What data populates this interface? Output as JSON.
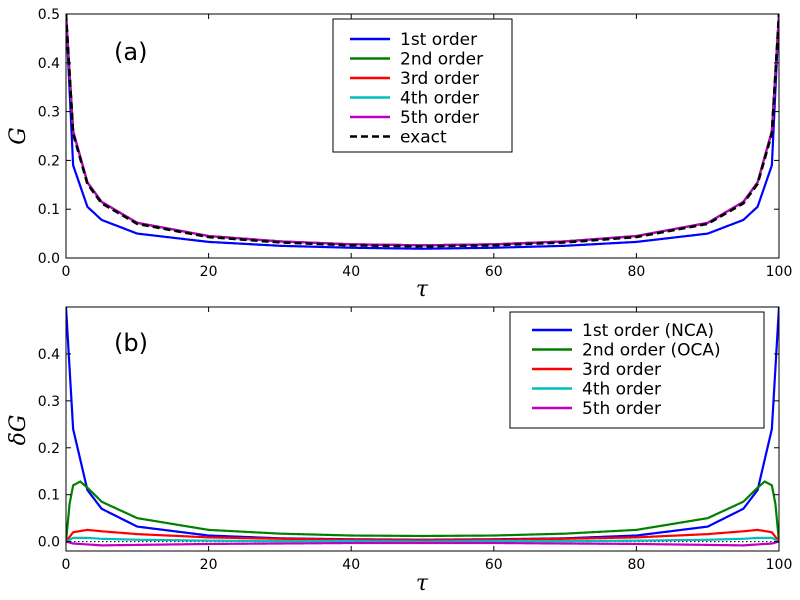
{
  "chart_data": [
    {
      "type": "line",
      "panel_label": "(a)",
      "xlabel": "τ",
      "ylabel": "G",
      "xlim": [
        0,
        100
      ],
      "ylim": [
        0,
        0.5
      ],
      "xticks": [
        "0",
        "20",
        "40",
        "60",
        "80",
        "100"
      ],
      "yticks": [
        "0.0",
        "0.1",
        "0.2",
        "0.3",
        "0.4",
        "0.5"
      ],
      "grid": false,
      "legend_position": "upper-center",
      "series": [
        {
          "name": "1st order",
          "color": "#0000ff",
          "dash": "solid",
          "y_at": {
            "0": 0.5,
            "1": 0.19,
            "3": 0.105,
            "5": 0.078,
            "10": 0.05,
            "20": 0.033,
            "30": 0.025,
            "40": 0.021,
            "50": 0.019
          }
        },
        {
          "name": "2nd order",
          "color": "#008000",
          "dash": "solid",
          "y_at": {
            "0": 0.5,
            "1": 0.26,
            "3": 0.155,
            "5": 0.115,
            "10": 0.072,
            "20": 0.045,
            "30": 0.034,
            "40": 0.028,
            "50": 0.026
          }
        },
        {
          "name": "3rd order",
          "color": "#ff0000",
          "dash": "solid",
          "y_at": {
            "0": 0.5,
            "1": 0.26,
            "3": 0.155,
            "5": 0.115,
            "10": 0.072,
            "20": 0.045,
            "30": 0.034,
            "40": 0.028,
            "50": 0.026
          }
        },
        {
          "name": "4th order",
          "color": "#00bfbf",
          "dash": "solid",
          "y_at": {
            "0": 0.5,
            "1": 0.26,
            "3": 0.155,
            "5": 0.115,
            "10": 0.072,
            "20": 0.045,
            "30": 0.034,
            "40": 0.028,
            "50": 0.026
          }
        },
        {
          "name": "5th order",
          "color": "#bf00bf",
          "dash": "solid",
          "y_at": {
            "0": 0.5,
            "1": 0.26,
            "3": 0.155,
            "5": 0.115,
            "10": 0.072,
            "20": 0.045,
            "30": 0.034,
            "40": 0.028,
            "50": 0.026
          }
        },
        {
          "name": "exact",
          "color": "#000000",
          "dash": "dashed",
          "y_at": {
            "0": 0.5,
            "1": 0.255,
            "3": 0.152,
            "5": 0.112,
            "10": 0.07,
            "20": 0.043,
            "30": 0.032,
            "40": 0.026,
            "50": 0.024
          }
        }
      ]
    },
    {
      "type": "line",
      "panel_label": "(b)",
      "xlabel": "τ",
      "ylabel": "δG",
      "xlim": [
        0,
        100
      ],
      "ylim": [
        -0.02,
        0.5
      ],
      "xticks": [
        "0",
        "20",
        "40",
        "60",
        "80",
        "100"
      ],
      "yticks": [
        "0.0",
        "0.1",
        "0.2",
        "0.3",
        "0.4"
      ],
      "grid": false,
      "legend_position": "upper-right",
      "series": [
        {
          "name": "1st order (NCA)",
          "color": "#0000ff",
          "dash": "solid",
          "y_at": {
            "0": 0.5,
            "1": 0.24,
            "3": 0.11,
            "5": 0.07,
            "10": 0.032,
            "20": 0.013,
            "30": 0.007,
            "40": 0.005,
            "50": 0.004
          }
        },
        {
          "name": "2nd order (OCA)",
          "color": "#008000",
          "dash": "solid",
          "y_at": {
            "0": 0.0,
            "0.5": 0.08,
            "1": 0.12,
            "2": 0.128,
            "3": 0.115,
            "5": 0.085,
            "10": 0.05,
            "20": 0.025,
            "30": 0.017,
            "40": 0.013,
            "50": 0.012
          }
        },
        {
          "name": "3rd order",
          "color": "#ff0000",
          "dash": "solid",
          "y_at": {
            "0": 0.0,
            "1": 0.02,
            "3": 0.025,
            "5": 0.022,
            "10": 0.016,
            "20": 0.009,
            "30": 0.006,
            "40": 0.004,
            "50": 0.003
          }
        },
        {
          "name": "4th order",
          "color": "#00bfbf",
          "dash": "solid",
          "y_at": {
            "0": 0.0,
            "1": 0.008,
            "3": 0.008,
            "5": 0.006,
            "10": 0.004,
            "20": 0.002,
            "30": 0.001,
            "40": 0.001,
            "50": 0.0
          }
        },
        {
          "name": "5th order",
          "color": "#bf00bf",
          "dash": "solid",
          "y_at": {
            "0": 0.0,
            "1": -0.004,
            "3": -0.006,
            "5": -0.008,
            "10": -0.007,
            "20": -0.005,
            "30": -0.004,
            "40": -0.003,
            "50": -0.003
          }
        }
      ],
      "reference_line": {
        "y": 0.0,
        "color": "#000000",
        "dash": "dotted"
      }
    }
  ]
}
